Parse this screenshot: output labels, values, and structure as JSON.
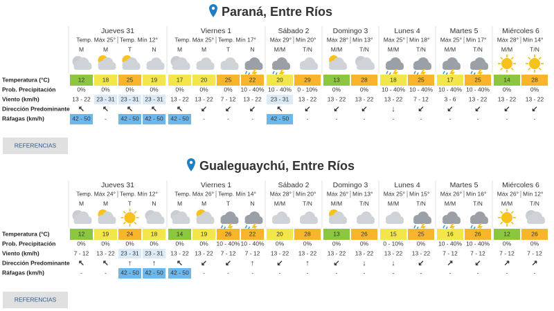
{
  "row_labels": [
    "Temperatura (°C)",
    "Prob. Precipitación",
    "Viento (km/h)",
    "Dirección Predominante",
    "Ráfagas (km/h)"
  ],
  "button": "REFERENCIAS",
  "sections": [
    {
      "title": "Paraná, Entre Ríos",
      "days": [
        {
          "name": "Jueves 31",
          "max": "Temp. Máx 25°",
          "min": "Temp. Mín 12°",
          "periods": [
            "M",
            "M",
            "T",
            "N"
          ]
        },
        {
          "name": "Viernes 1",
          "max": "Temp. Máx 25°",
          "min": "Temp. Mín 17°",
          "periods": [
            "M",
            "M",
            "T",
            "N"
          ]
        },
        {
          "name": "Sábado 2",
          "max": "Máx 29°",
          "min": "Mín 20°",
          "periods": [
            "M/M",
            "T/N"
          ]
        },
        {
          "name": "Domingo 3",
          "max": "Máx 28°",
          "min": "Mín 13°",
          "periods": [
            "M/M",
            "T/N"
          ]
        },
        {
          "name": "Lunes 4",
          "max": "Máx 25°",
          "min": "Mín 18°",
          "periods": [
            "M/M",
            "T/N"
          ]
        },
        {
          "name": "Martes 5",
          "max": "Máx 25°",
          "min": "Mín 17°",
          "periods": [
            "M/M",
            "T/N"
          ]
        },
        {
          "name": "Miércoles 6",
          "max": "Máx 28°",
          "min": "Mín 14°",
          "periods": [
            "M/M",
            "T/N"
          ]
        }
      ],
      "temps": [
        12,
        18,
        25,
        19,
        17,
        20,
        25,
        22,
        20,
        29,
        13,
        28,
        18,
        25,
        17,
        25,
        14,
        28
      ],
      "precip": [
        "0%",
        "0%",
        "0%",
        "0%",
        "0%",
        "0%",
        "0%",
        "10 - 40%",
        "10 - 40%",
        "0 - 10%",
        "0%",
        "0%",
        "10 - 40%",
        "10 - 40%",
        "10 - 40%",
        "10 - 40%",
        "0%",
        "0%"
      ],
      "wind": [
        "13 - 22",
        "23 - 31",
        "23 - 31",
        "23 - 31",
        "13 - 22",
        "13 - 22",
        "7 - 12",
        "13 - 22",
        "23 - 31",
        "13 - 22",
        "13 - 22",
        "13 - 22",
        "13 - 22",
        "7 - 12",
        "3 - 6",
        "13 - 22",
        "13 - 22",
        "13 - 22"
      ],
      "direction": [
        "↖",
        "↖",
        "↖",
        "↖",
        "↖",
        "↙",
        "↙",
        "↙",
        "↖",
        "↙",
        "↙",
        "↙",
        "↓",
        "↙",
        "↙",
        "↙",
        "↙",
        "↙"
      ],
      "gusts": [
        "42 - 50",
        "-",
        "42 - 50",
        "42 - 50",
        "42 - 50",
        "-",
        "-",
        "-",
        "42 - 50",
        "-",
        "-",
        "-",
        "-",
        "-",
        "-",
        "-",
        "-",
        "-"
      ]
    },
    {
      "title": "Gualeguaychú, Entre Ríos",
      "days": [
        {
          "name": "Jueves 31",
          "max": "Temp. Máx 24°",
          "min": "Temp. Mín 12°",
          "periods": [
            "M",
            "M",
            "T",
            "N"
          ]
        },
        {
          "name": "Viernes 1",
          "max": "Temp. Máx 26°",
          "min": "Temp. Mín 14°",
          "periods": [
            "M",
            "M",
            "T",
            "N"
          ]
        },
        {
          "name": "Sábado 2",
          "max": "Máx 28°",
          "min": "Mín 20°",
          "periods": [
            "M/M",
            "T/N"
          ]
        },
        {
          "name": "Domingo 3",
          "max": "Máx 26°",
          "min": "Mín 13°",
          "periods": [
            "M/M",
            "T/N"
          ]
        },
        {
          "name": "Lunes 4",
          "max": "Máx 25°",
          "min": "Mín 15°",
          "periods": [
            "M/M",
            "T/N"
          ]
        },
        {
          "name": "Martes 5",
          "max": "Máx 26°",
          "min": "Mín 16°",
          "periods": [
            "M/M",
            "T/N"
          ]
        },
        {
          "name": "Miércoles 6",
          "max": "Máx 26°",
          "min": "Mín 12°",
          "periods": [
            "M/M",
            "T/N"
          ]
        }
      ],
      "temps": [
        12,
        19,
        24,
        18,
        14,
        19,
        26,
        22,
        20,
        28,
        13,
        26,
        15,
        25,
        16,
        26,
        12,
        26
      ],
      "precip": [
        "0%",
        "0%",
        "0%",
        "0%",
        "0%",
        "0%",
        "10 - 40%",
        "10 - 40%",
        "0%",
        "0%",
        "0%",
        "0%",
        "0 - 10%",
        "0%",
        "10 - 40%",
        "10 - 40%",
        "0%",
        "0%"
      ],
      "wind": [
        "7 - 12",
        "13 - 22",
        "23 - 31",
        "23 - 31",
        "13 - 22",
        "13 - 22",
        "7 - 12",
        "7 - 12",
        "13 - 22",
        "13 - 22",
        "13 - 22",
        "13 - 22",
        "13 - 22",
        "13 - 22",
        "7 - 12",
        "7 - 12",
        "7 - 12",
        "7 - 12"
      ],
      "direction": [
        "↖",
        "↖",
        "↑",
        "↑",
        "↖",
        "↙",
        "↙",
        "↑",
        "↙",
        "↑",
        "↙",
        "↓",
        "↓",
        "↙",
        "↗",
        "↙",
        "↗",
        "↗"
      ],
      "gusts": [
        "-",
        "-",
        "42 - 50",
        "42 - 50",
        "42 - 50",
        "-",
        "-",
        "-",
        "-",
        "-",
        "-",
        "-",
        "-",
        "-",
        "-",
        "-",
        "-",
        "-"
      ]
    }
  ]
}
